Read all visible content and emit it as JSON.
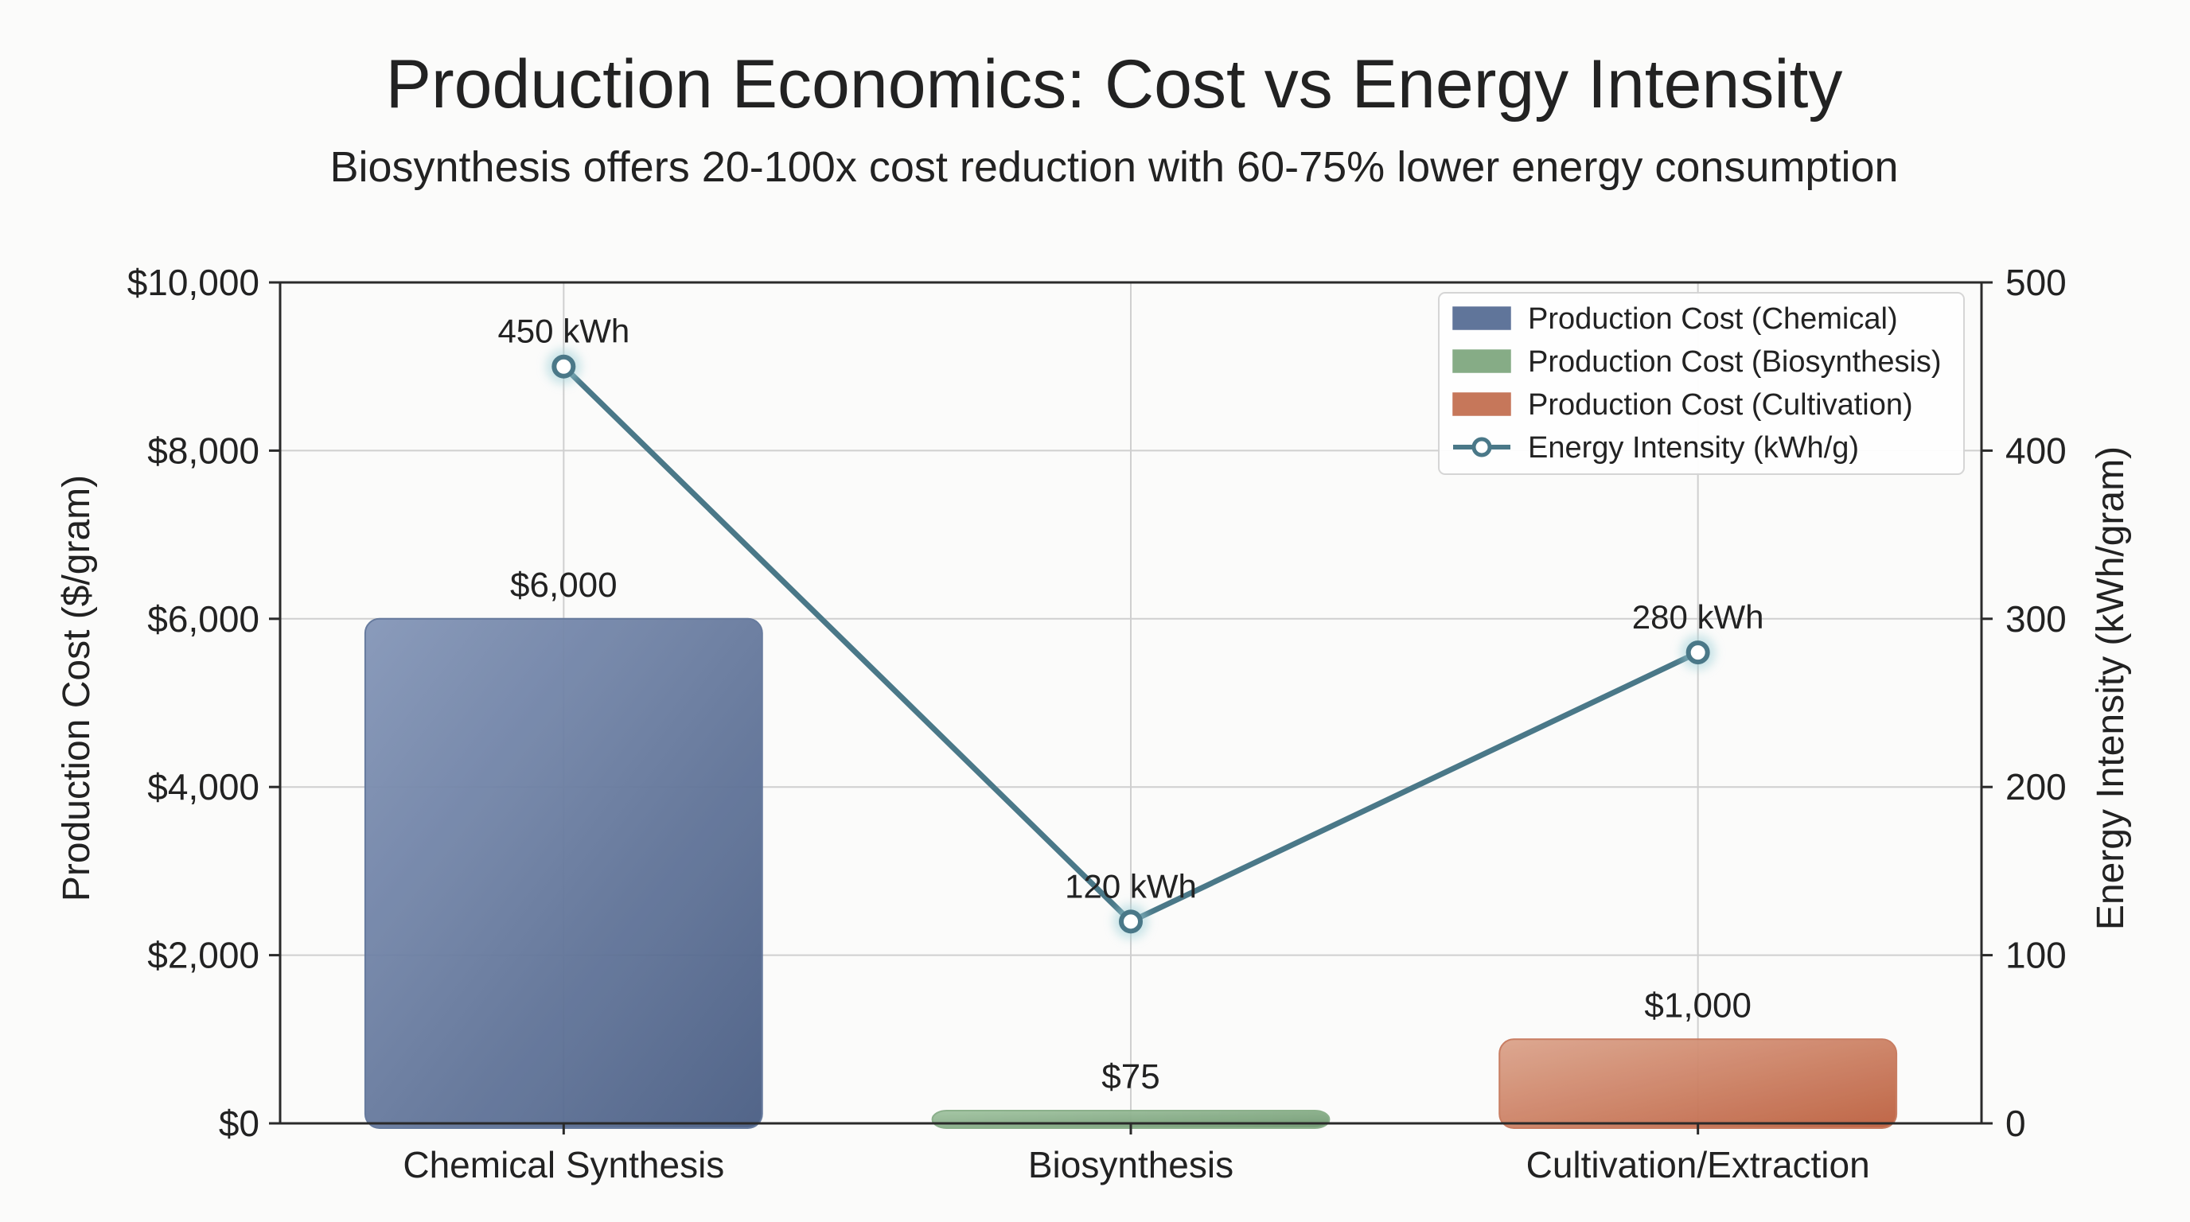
{
  "chart_data": {
    "type": "bar",
    "title": "Production Economics: Cost vs Energy Intensity",
    "subtitle": "Biosynthesis offers 20-100x cost reduction with 60-75% lower energy consumption",
    "categories": [
      "Chemical Synthesis",
      "Biosynthesis",
      "Cultivation/Extraction"
    ],
    "series": [
      {
        "name": "Production Cost",
        "axis": "left",
        "kind": "bar",
        "values": [
          6000,
          75,
          1000
        ],
        "labels": [
          "$6,000",
          "$75",
          "$1,000"
        ],
        "colors": [
          "#60759a",
          "#86ac86",
          "#c6775a"
        ]
      },
      {
        "name": "Energy Intensity (kWh/g)",
        "axis": "right",
        "kind": "line",
        "values": [
          450,
          120,
          280
        ],
        "labels": [
          "450 kWh",
          "120 kWh",
          "280 kWh"
        ],
        "color": "#4a7888"
      }
    ],
    "ylabel": "Production Cost ($/gram)",
    "ylim": [
      0,
      10000
    ],
    "yticks": [
      "$0",
      "$2,000",
      "$4,000",
      "$6,000",
      "$8,000",
      "$10,000"
    ],
    "ytick_values": [
      0,
      2000,
      4000,
      6000,
      8000,
      10000
    ],
    "y2label": "Energy Intensity (kWh/gram)",
    "y2lim": [
      0,
      500
    ],
    "y2ticks": [
      "0",
      "100",
      "200",
      "300",
      "400",
      "500"
    ],
    "y2tick_values": [
      0,
      100,
      200,
      300,
      400,
      500
    ],
    "grid": true,
    "legend": {
      "position": "top-right",
      "entries": [
        {
          "label": "Production Cost (Chemical)",
          "color": "#60759a",
          "kind": "bar"
        },
        {
          "label": "Production Cost (Biosynthesis)",
          "color": "#86ac86",
          "kind": "bar"
        },
        {
          "label": "Production Cost (Cultivation)",
          "color": "#c6775a",
          "kind": "bar"
        },
        {
          "label": "Energy Intensity (kWh/g)",
          "color": "#4a7888",
          "kind": "line"
        }
      ]
    }
  }
}
